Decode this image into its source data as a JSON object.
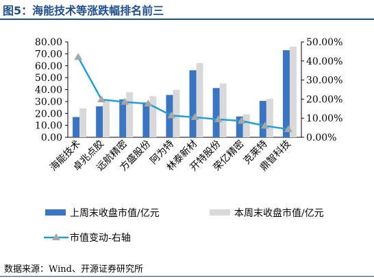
{
  "figure_title": "图5：海能技术等涨跌幅排名前三",
  "source_note": "数据来源：Wind、开源证券研究所",
  "chart_data": {
    "type": "bar",
    "categories": [
      "海能技术",
      "卓兆点胶",
      "远航精密",
      "方盛股份",
      "阿为特",
      "林泰新材",
      "开特股份",
      "荣亿精密",
      "克莱特",
      "鼎智科技"
    ],
    "series": [
      {
        "name": "上周末收盘市值/亿元",
        "type": "bar",
        "axis": "left",
        "color": "#3a75c4",
        "values": [
          17.0,
          26.0,
          31.8,
          29.2,
          35.5,
          56.2,
          41.3,
          17.5,
          30.5,
          73.0
        ]
      },
      {
        "name": "本周末收盘市值/亿元",
        "type": "bar",
        "axis": "left",
        "color": "#d9d9d9",
        "values": [
          24.3,
          31.5,
          37.8,
          34.5,
          39.7,
          62.3,
          45.2,
          19.3,
          32.3,
          76.0
        ]
      },
      {
        "name": "市值变动-右轴",
        "type": "line",
        "axis": "right",
        "color": "#1e9ed6",
        "marker": "triangle",
        "marker_color": "#a6a6a6",
        "values": [
          42.0,
          19.8,
          18.5,
          17.6,
          11.4,
          10.5,
          9.4,
          8.6,
          6.0,
          4.2
        ]
      }
    ],
    "y_left": {
      "min": 0,
      "max": 80,
      "ticks": [
        "0.00",
        "10.00",
        "20.00",
        "30.00",
        "40.00",
        "50.00",
        "60.00",
        "70.00",
        "80.00"
      ]
    },
    "y_right": {
      "min": 0,
      "max": 50,
      "ticks": [
        "0.00%",
        "10.00%",
        "20.00%",
        "30.00%",
        "40.00%",
        "50.00%"
      ]
    },
    "legend_position": "bottom",
    "grid": false
  }
}
